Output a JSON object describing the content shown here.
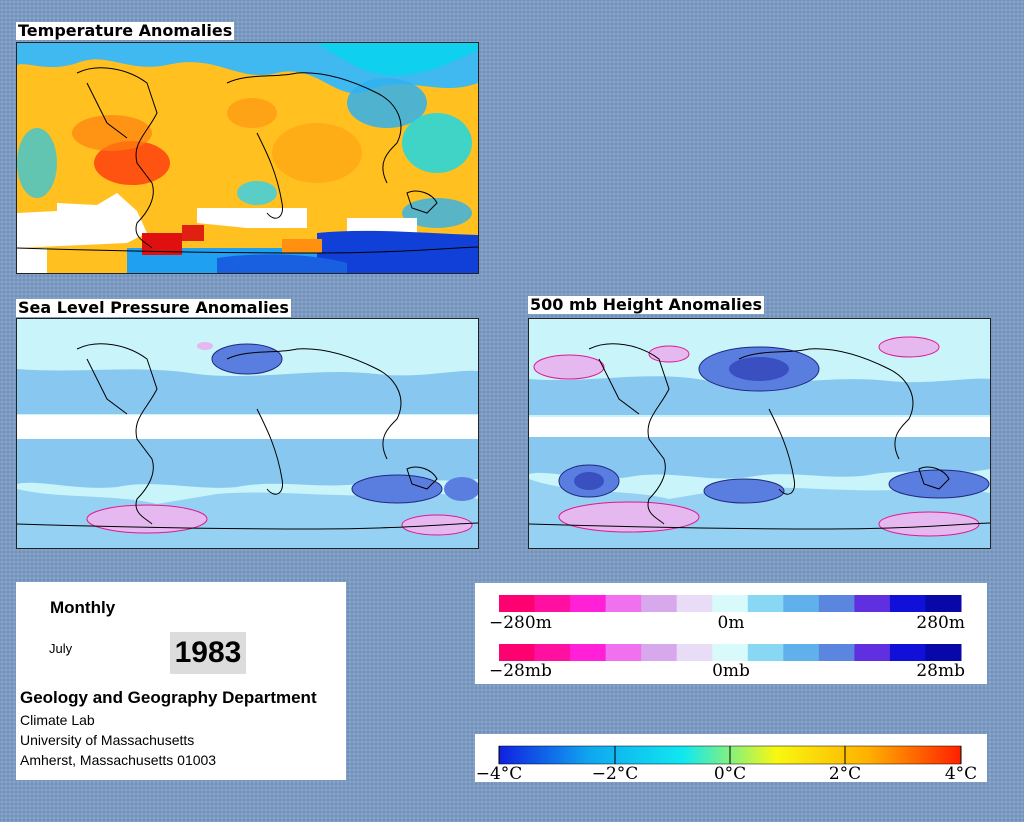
{
  "panels": {
    "temperature": {
      "title": "Temperature Anomalies"
    },
    "slp": {
      "title": "Sea Level Pressure Anomalies"
    },
    "height500": {
      "title": "500 mb Height Anomalies"
    }
  },
  "info": {
    "period": "Monthly",
    "month": "July",
    "year": "1983",
    "department": "Geology and Geography Department",
    "lines": [
      "Climate Lab",
      "University of Massachusetts",
      "Amherst, Massachusetts 01003"
    ]
  },
  "legend_height": {
    "labels": [
      "−280m",
      "0m",
      "280m"
    ],
    "colors": [
      "#ff0070",
      "#ff10a0",
      "#ff20d8",
      "#f070f0",
      "#d8a8ec",
      "#e8dcf6",
      "#d8fafa",
      "#88d8f4",
      "#60b0ec",
      "#5a86e0",
      "#6030e0",
      "#1010d8",
      "#0808a8"
    ]
  },
  "legend_slp": {
    "labels": [
      "−28mb",
      "0mb",
      "28mb"
    ],
    "colors": [
      "#ff0070",
      "#ff10a0",
      "#ff20d8",
      "#f070f0",
      "#d8a8ec",
      "#e8dcf6",
      "#d8fafa",
      "#88d8f4",
      "#60b0ec",
      "#5a86e0",
      "#6030e0",
      "#1010d8",
      "#0808a8"
    ]
  },
  "legend_temp": {
    "labels": [
      "−4°C",
      "−2°C",
      "0°C",
      "2°C",
      "4°C"
    ],
    "gradient": [
      "#1020e0",
      "#10a8f0",
      "#10e8f0",
      "#f8f810",
      "#ffb000",
      "#ff2000"
    ]
  },
  "colors": {
    "background": "#7d9cc4",
    "temp_warm": "#ffb020",
    "temp_hot": "#ff4010",
    "temp_cool": "#30b0f0",
    "temp_cold": "#1840d8",
    "anom_base": "#c8f4fa",
    "anom_neg": "#88c8f0",
    "anom_strong_neg": "#5a7ee0",
    "anom_pos": "#e6b8f0",
    "contour_pos": "#e01890",
    "contour_neg": "#202880"
  }
}
